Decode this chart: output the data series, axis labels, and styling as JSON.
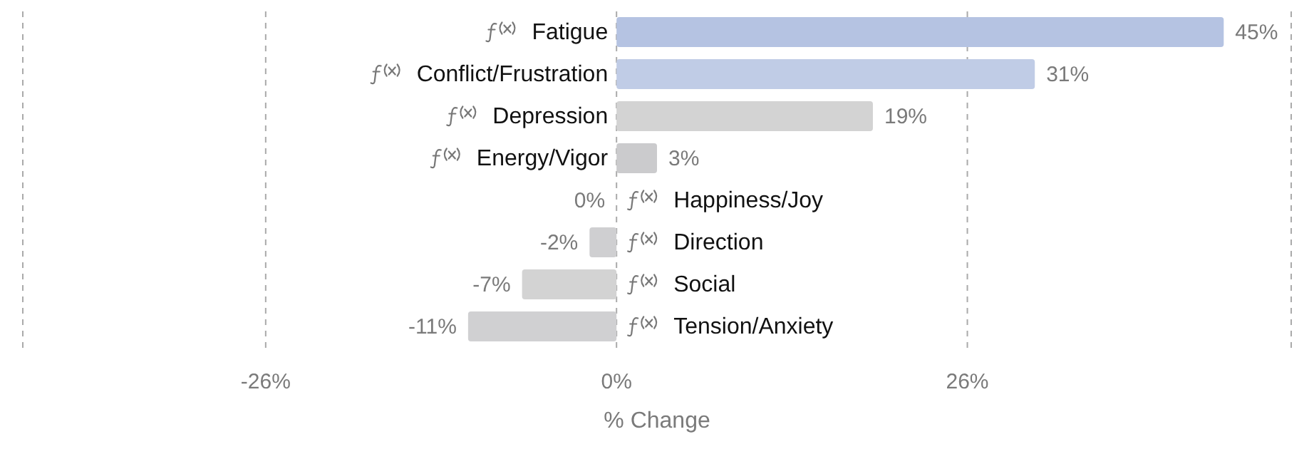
{
  "chart_data": {
    "type": "bar",
    "orientation": "horizontal",
    "xlabel": "% Change",
    "categories": [
      "Fatigue",
      "Conflict/Frustration",
      "Depression",
      "Energy/Vigor",
      "Happiness/Joy",
      "Direction",
      "Social",
      "Tension/Anxiety"
    ],
    "values": [
      45,
      31,
      19,
      3,
      0,
      -2,
      -7,
      -11
    ],
    "value_labels": [
      "45%",
      "31%",
      "19%",
      "3%",
      "0%",
      "-2%",
      "-7%",
      "-11%"
    ],
    "colors": [
      "#b5c3e2",
      "#c0cce6",
      "#d3d3d3",
      "#cbcbcd",
      "#d3d3d3",
      "#cfcfd1",
      "#d3d3d3",
      "#d0d0d2"
    ],
    "xlim": [
      -44,
      50
    ],
    "xticks": [
      {
        "value": -26,
        "label": "-26%"
      },
      {
        "value": 0,
        "label": "0%"
      },
      {
        "value": 26,
        "label": "26%"
      }
    ],
    "grid": "x"
  }
}
